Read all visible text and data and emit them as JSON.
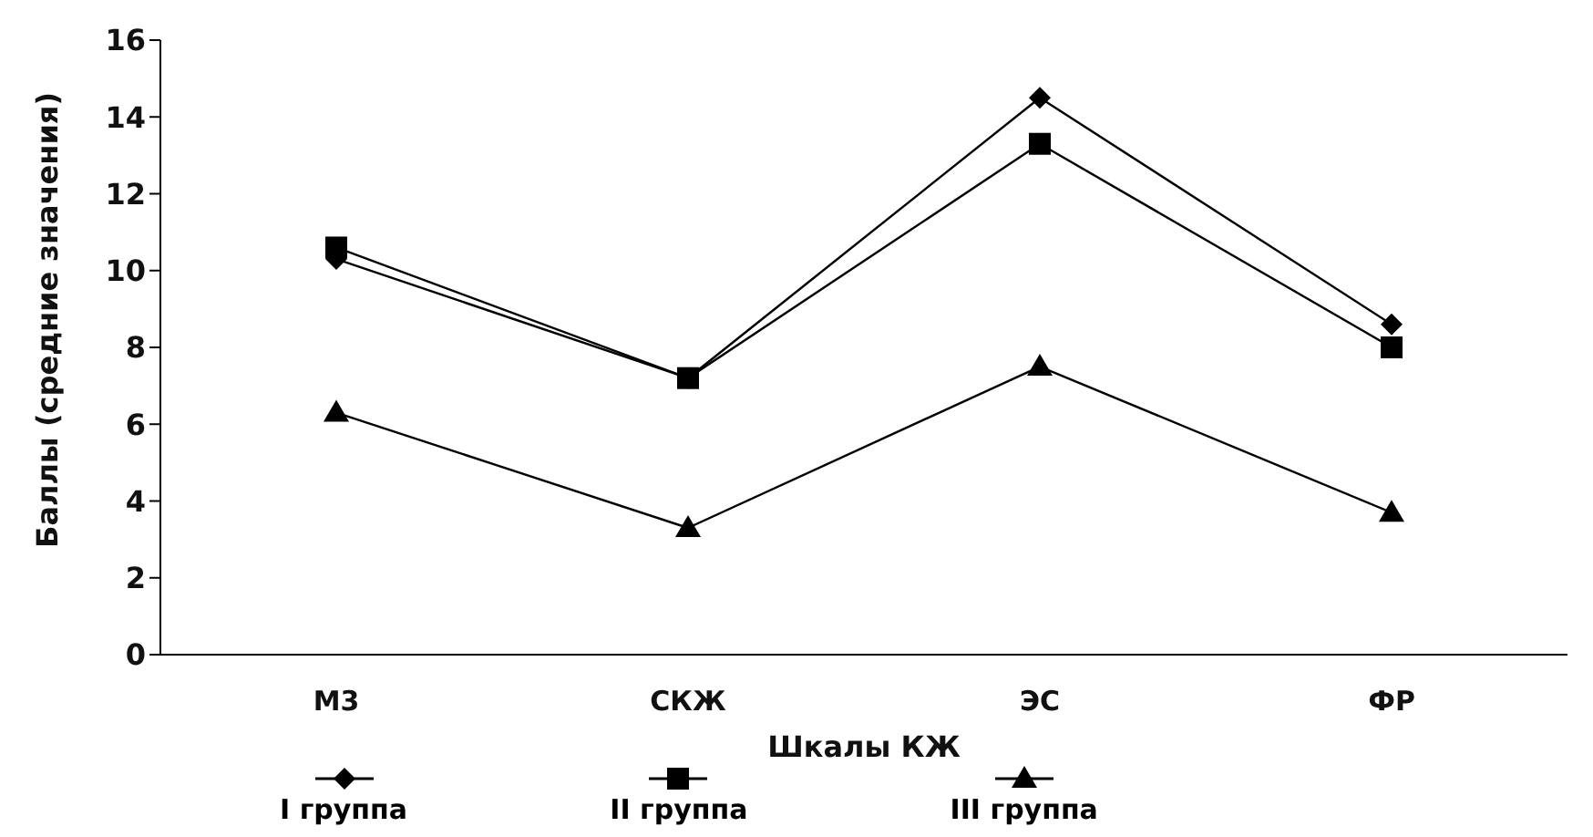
{
  "chart_data": {
    "type": "line",
    "xlabel": "Шкалы КЖ",
    "ylabel": "Баллы (средние значения)",
    "categories": [
      "М3",
      "СКЖ",
      "ЭС",
      "ФР"
    ],
    "series": [
      {
        "name": "I группа",
        "color": "#000000",
        "marker": "diamond",
        "values": [
          10.3,
          7.2,
          14.5,
          8.6
        ]
      },
      {
        "name": "II группа",
        "color": "#000000",
        "marker": "square",
        "values": [
          10.6,
          7.2,
          13.3,
          8.0
        ]
      },
      {
        "name": "III группа",
        "color": "#000000",
        "marker": "triangle",
        "values": [
          6.3,
          3.3,
          7.5,
          3.7
        ]
      }
    ],
    "ylim": [
      0,
      16
    ],
    "yticks": [
      0,
      2,
      4,
      6,
      8,
      10,
      12,
      14,
      16
    ],
    "grid": false,
    "legend": "bottom"
  }
}
